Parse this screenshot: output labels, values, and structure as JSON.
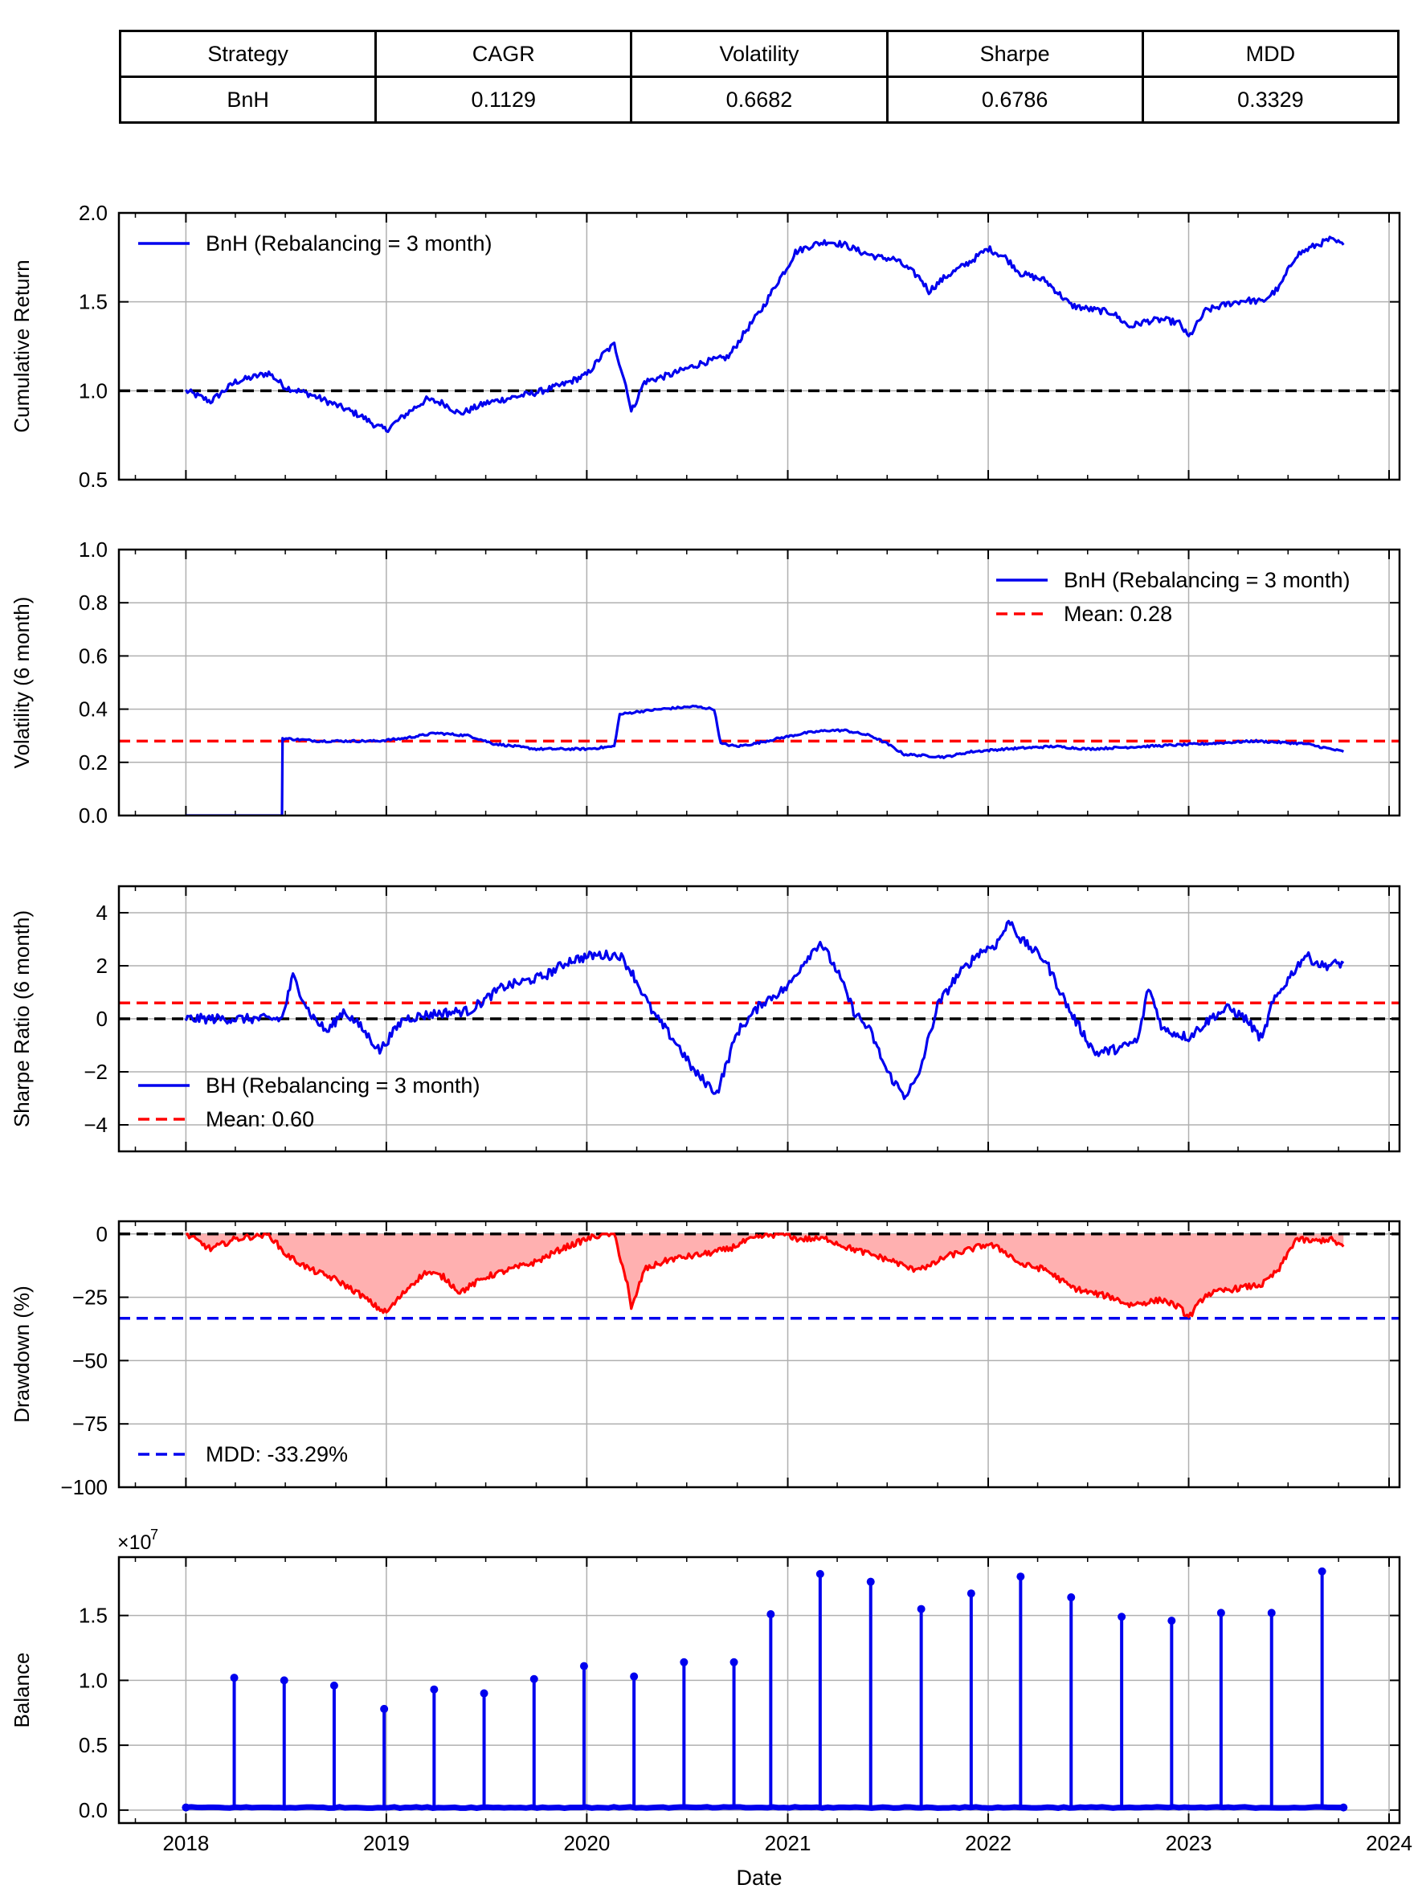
{
  "table": {
    "headers": [
      "Strategy",
      "CAGR",
      "Volatility",
      "Sharpe",
      "MDD"
    ],
    "row": [
      "BnH",
      "0.1129",
      "0.6682",
      "0.6786",
      "0.3329"
    ]
  },
  "x_axis": {
    "label": "Date",
    "ticks": [
      "2018",
      "2019",
      "2020",
      "2021",
      "2022",
      "2023",
      "2024"
    ],
    "xlim": [
      "2017-09-01",
      "2024-01-20"
    ]
  },
  "colors": {
    "blue": "#0000ee",
    "red": "#ff0000",
    "black": "#000000",
    "fill": "#ffb0b0"
  },
  "chart_data": [
    {
      "type": "line",
      "ylabel": "Cumulative Return",
      "ylim": [
        0.5,
        2.0
      ],
      "yticks": [
        "0.5",
        "1.0",
        "1.5",
        "2.0"
      ],
      "legend_position": "top-left",
      "series": [
        {
          "name": "BnH (Rebalancing = 3 month)",
          "color": "#0000ee",
          "x": [
            "2018-01-01",
            "2018-02-15",
            "2018-04-01",
            "2018-06-01",
            "2018-07-01",
            "2018-08-15",
            "2018-10-01",
            "2018-11-15",
            "2018-12-15",
            "2019-01-01",
            "2019-02-15",
            "2019-03-15",
            "2019-04-15",
            "2019-05-15",
            "2019-07-01",
            "2019-08-15",
            "2019-10-01",
            "2019-11-15",
            "2020-01-01",
            "2020-02-01",
            "2020-02-20",
            "2020-03-15",
            "2020-03-22",
            "2020-04-15",
            "2020-06-01",
            "2020-08-01",
            "2020-09-15",
            "2020-10-15",
            "2020-11-15",
            "2020-12-15",
            "2021-01-01",
            "2021-01-15",
            "2021-02-15",
            "2021-03-15",
            "2021-04-15",
            "2021-05-15",
            "2021-06-15",
            "2021-07-15",
            "2021-08-15",
            "2021-08-31",
            "2021-09-15",
            "2021-10-15",
            "2021-12-01",
            "2022-01-01",
            "2022-02-01",
            "2022-03-01",
            "2022-04-15",
            "2022-06-01",
            "2022-07-01",
            "2022-08-15",
            "2022-09-15",
            "2022-10-15",
            "2022-11-15",
            "2022-12-15",
            "2023-01-01",
            "2023-02-01",
            "2023-03-15",
            "2023-04-15",
            "2023-05-15",
            "2023-06-15",
            "2023-07-15",
            "2023-08-15",
            "2023-09-15",
            "2023-10-10"
          ],
          "values": [
            1.0,
            0.94,
            1.05,
            1.1,
            1.02,
            0.98,
            0.92,
            0.86,
            0.8,
            0.78,
            0.89,
            0.95,
            0.93,
            0.87,
            0.93,
            0.96,
            0.99,
            1.03,
            1.09,
            1.21,
            1.26,
            1.0,
            0.88,
            1.05,
            1.09,
            1.16,
            1.19,
            1.33,
            1.46,
            1.62,
            1.7,
            1.78,
            1.82,
            1.84,
            1.82,
            1.78,
            1.75,
            1.74,
            1.67,
            1.63,
            1.56,
            1.64,
            1.73,
            1.8,
            1.75,
            1.66,
            1.62,
            1.48,
            1.46,
            1.44,
            1.36,
            1.39,
            1.4,
            1.38,
            1.3,
            1.45,
            1.49,
            1.51,
            1.5,
            1.58,
            1.76,
            1.81,
            1.85,
            1.82
          ]
        }
      ],
      "hlines": [
        {
          "y": 1.0,
          "color": "#000000",
          "style": "dashed"
        }
      ]
    },
    {
      "type": "line",
      "ylabel": "Volatility (6 month)",
      "ylim": [
        0.0,
        1.0
      ],
      "yticks": [
        "0.0",
        "0.2",
        "0.4",
        "0.6",
        "0.8",
        "1.0"
      ],
      "legend_position": "top-right",
      "series": [
        {
          "name": "BnH (Rebalancing = 3 month)",
          "color": "#0000ee",
          "x": [
            "2018-01-01",
            "2018-06-25",
            "2018-06-26",
            "2018-09-01",
            "2018-12-15",
            "2019-02-01",
            "2019-04-01",
            "2019-06-01",
            "2019-07-15",
            "2019-10-01",
            "2020-01-01",
            "2020-02-20",
            "2020-03-01",
            "2020-04-01",
            "2020-05-15",
            "2020-07-15",
            "2020-08-20",
            "2020-09-01",
            "2020-10-01",
            "2020-11-01",
            "2020-12-15",
            "2021-02-01",
            "2021-03-15",
            "2021-04-15",
            "2021-06-01",
            "2021-07-01",
            "2021-08-01",
            "2021-10-15",
            "2021-12-01",
            "2022-02-01",
            "2022-05-01",
            "2022-07-01",
            "2022-10-15",
            "2023-02-01",
            "2023-05-01",
            "2023-08-01",
            "2023-10-10"
          ],
          "values": [
            0.0,
            0.0,
            0.29,
            0.28,
            0.28,
            0.29,
            0.31,
            0.3,
            0.27,
            0.25,
            0.25,
            0.26,
            0.38,
            0.39,
            0.4,
            0.41,
            0.4,
            0.27,
            0.26,
            0.27,
            0.29,
            0.31,
            0.32,
            0.32,
            0.3,
            0.27,
            0.23,
            0.22,
            0.24,
            0.25,
            0.26,
            0.25,
            0.26,
            0.27,
            0.28,
            0.27,
            0.24
          ]
        }
      ],
      "hlines": [
        {
          "y": 0.28,
          "color": "#ff0000",
          "style": "dashed",
          "name": "Mean: 0.28"
        }
      ]
    },
    {
      "type": "line",
      "ylabel": "Sharpe Ratio (6 month)",
      "ylim": [
        -5,
        5
      ],
      "yticks": [
        "−4",
        "−2",
        "0",
        "2",
        "4"
      ],
      "legend_position": "bottom-left",
      "series": [
        {
          "name": "BH (Rebalancing = 3 month)",
          "color": "#0000ee",
          "x": [
            "2018-01-01",
            "2018-06-25",
            "2018-07-15",
            "2018-08-15",
            "2018-09-15",
            "2018-10-15",
            "2018-11-15",
            "2018-12-20",
            "2019-02-01",
            "2019-04-01",
            "2019-06-01",
            "2019-08-01",
            "2019-10-15",
            "2019-12-01",
            "2020-01-15",
            "2020-03-01",
            "2020-03-22",
            "2020-05-01",
            "2020-06-15",
            "2020-07-15",
            "2020-08-25",
            "2020-10-01",
            "2020-11-15",
            "2021-01-01",
            "2021-02-01",
            "2021-03-01",
            "2021-04-01",
            "2021-05-01",
            "2021-06-01",
            "2021-07-01",
            "2021-08-01",
            "2021-08-25",
            "2021-10-01",
            "2021-11-01",
            "2021-12-15",
            "2022-01-15",
            "2022-02-10",
            "2022-03-01",
            "2022-04-15",
            "2022-06-01",
            "2022-07-15",
            "2022-09-01",
            "2022-10-01",
            "2022-10-20",
            "2022-11-15",
            "2023-01-01",
            "2023-02-15",
            "2023-03-15",
            "2023-04-15",
            "2023-05-15",
            "2023-06-01",
            "2023-07-01",
            "2023-08-01",
            "2023-09-01",
            "2023-10-10"
          ],
          "values": [
            0,
            0,
            1.6,
            0.2,
            -0.5,
            0.3,
            -0.3,
            -1.2,
            0.0,
            0.2,
            0.3,
            1.2,
            1.6,
            2.2,
            2.4,
            2.4,
            1.8,
            0.2,
            -1.0,
            -2.0,
            -2.8,
            -0.5,
            0.6,
            1.2,
            2.2,
            2.9,
            1.8,
            0.3,
            -0.5,
            -2.0,
            -2.9,
            -2.3,
            0.5,
            1.5,
            2.5,
            2.8,
            3.7,
            3.0,
            2.2,
            0.2,
            -1.3,
            -1.1,
            -0.8,
            1.2,
            -0.4,
            -0.7,
            0.1,
            0.4,
            0.0,
            -0.8,
            0.5,
            1.5,
            2.4,
            2.0,
            2.1
          ]
        }
      ],
      "hlines": [
        {
          "y": 0.6,
          "color": "#ff0000",
          "style": "dashed",
          "name": "Mean: 0.60"
        },
        {
          "y": 0.0,
          "color": "#000000",
          "style": "dashed"
        }
      ]
    },
    {
      "type": "area",
      "ylabel": "Drawdown (%)",
      "ylim": [
        -100,
        5
      ],
      "yticks": [
        "−100",
        "−75",
        "−50",
        "−25",
        "0"
      ],
      "legend_position": "bottom-left",
      "series": [
        {
          "color": "#ff0000",
          "x": [
            "2018-01-01",
            "2018-02-15",
            "2018-04-01",
            "2018-06-01",
            "2018-07-01",
            "2018-08-15",
            "2018-10-01",
            "2018-11-15",
            "2018-12-15",
            "2019-01-01",
            "2019-02-15",
            "2019-03-15",
            "2019-04-15",
            "2019-05-15",
            "2019-07-01",
            "2019-08-15",
            "2019-10-01",
            "2019-11-15",
            "2020-01-01",
            "2020-02-01",
            "2020-02-20",
            "2020-03-15",
            "2020-03-22",
            "2020-04-15",
            "2020-06-01",
            "2020-08-01",
            "2020-09-15",
            "2020-10-15",
            "2020-11-15",
            "2020-12-15",
            "2021-01-01",
            "2021-01-15",
            "2021-02-15",
            "2021-03-15",
            "2021-04-15",
            "2021-05-15",
            "2021-06-15",
            "2021-07-15",
            "2021-08-15",
            "2021-08-31",
            "2021-09-15",
            "2021-10-15",
            "2021-12-01",
            "2022-01-01",
            "2022-02-01",
            "2022-03-01",
            "2022-04-15",
            "2022-06-01",
            "2022-07-01",
            "2022-08-15",
            "2022-09-15",
            "2022-10-15",
            "2022-11-15",
            "2022-12-15",
            "2023-01-01",
            "2023-02-01",
            "2023-03-15",
            "2023-04-15",
            "2023-05-15",
            "2023-06-15",
            "2023-07-15",
            "2023-08-15",
            "2023-09-15",
            "2023-10-10"
          ],
          "values": [
            0,
            -6,
            -2,
            0,
            -8,
            -14,
            -18,
            -24,
            -29,
            -31,
            -20,
            -15,
            -17,
            -23,
            -17,
            -14,
            -11,
            -6,
            -2,
            0,
            0,
            -20,
            -30,
            -14,
            -10,
            -8,
            -6,
            -3,
            -1,
            0,
            0,
            -2,
            -2,
            -2,
            -5,
            -7,
            -9,
            -11,
            -14,
            -13,
            -13,
            -9,
            -6,
            -4,
            -7,
            -12,
            -14,
            -21,
            -23,
            -25,
            -28,
            -27,
            -26,
            -29,
            -33,
            -24,
            -22,
            -21,
            -20,
            -14,
            -2,
            -3,
            -2,
            -5
          ]
        }
      ],
      "hlines": [
        {
          "y": -33.29,
          "color": "#0000ee",
          "style": "dashed",
          "name": "MDD: -33.29%"
        },
        {
          "y": 0,
          "color": "#000000",
          "style": "dashed"
        }
      ]
    },
    {
      "type": "line",
      "ylabel": "Balance",
      "ylim": [
        -0.1,
        1.95
      ],
      "yticks": [
        "0.0",
        "0.5",
        "1.0",
        "1.5"
      ],
      "y_offset_text": "×10",
      "y_offset_exponent": "7",
      "series": [
        {
          "name": "Balance",
          "color": "#0000ee",
          "marker": "circle",
          "x": [
            "2018-03-30",
            "2018-06-29",
            "2018-09-28",
            "2018-12-28",
            "2019-03-29",
            "2019-06-28",
            "2019-09-27",
            "2019-12-27",
            "2020-03-27",
            "2020-06-26",
            "2020-09-25",
            "2020-12-01",
            "2021-03-01",
            "2021-06-01",
            "2021-09-01",
            "2021-12-01",
            "2022-03-01",
            "2022-06-01",
            "2022-09-01",
            "2022-12-01",
            "2023-03-01",
            "2023-06-01",
            "2023-09-01"
          ],
          "values": [
            1.02,
            1.0,
            0.96,
            0.78,
            0.93,
            0.9,
            1.01,
            1.11,
            1.03,
            1.14,
            1.14,
            1.51,
            1.82,
            1.76,
            1.55,
            1.67,
            1.8,
            1.64,
            1.49,
            1.46,
            1.52,
            1.52,
            1.84
          ]
        }
      ]
    }
  ]
}
